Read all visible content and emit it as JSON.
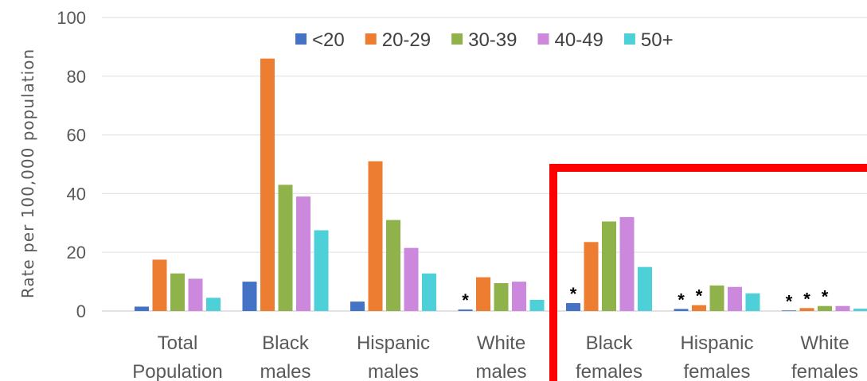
{
  "chart_data": {
    "type": "bar",
    "ylabel": "Rate per 100,000 population",
    "ylim": [
      0,
      100
    ],
    "yticks": [
      0,
      20,
      40,
      60,
      80,
      100
    ],
    "categories": [
      [
        "Total",
        "Population"
      ],
      [
        "Black",
        "males"
      ],
      [
        "Hispanic",
        "males"
      ],
      [
        "White",
        "males"
      ],
      [
        "Black",
        "females"
      ],
      [
        "Hispanic",
        "females"
      ],
      [
        "White",
        "females"
      ]
    ],
    "series": [
      {
        "name": "<20",
        "color": "#4472c4",
        "values": [
          1.5,
          10,
          3.2,
          0.5,
          2.7,
          0.7,
          0.2
        ]
      },
      {
        "name": "20-29",
        "color": "#ed7d31",
        "values": [
          17.5,
          86,
          51,
          11.5,
          23.5,
          2.0,
          1.0
        ]
      },
      {
        "name": "30-39",
        "color": "#8fb34a",
        "values": [
          12.8,
          43,
          31,
          9.5,
          30.5,
          8.7,
          1.7
        ]
      },
      {
        "name": "40-49",
        "color": "#cc88dd",
        "values": [
          11,
          39,
          21.5,
          10,
          32,
          8.2,
          1.7
        ]
      },
      {
        "name": "50+",
        "color": "#4dd0d8",
        "values": [
          4.5,
          27.5,
          12.8,
          3.8,
          15,
          6,
          0.8
        ]
      }
    ],
    "asterisks": [
      {
        "category": 3,
        "series": 0,
        "text": "*"
      },
      {
        "category": 4,
        "series": 0,
        "text": "*"
      },
      {
        "category": 5,
        "series": 0,
        "text": "*"
      },
      {
        "category": 5,
        "series": 1,
        "text": "*"
      },
      {
        "category": 6,
        "series": 0,
        "text": "*"
      },
      {
        "category": 6,
        "series": 1,
        "text": "*"
      },
      {
        "category": 6,
        "series": 2,
        "text": "*"
      }
    ],
    "legend": "top",
    "grid": true,
    "highlight_color": "#ff0000"
  }
}
